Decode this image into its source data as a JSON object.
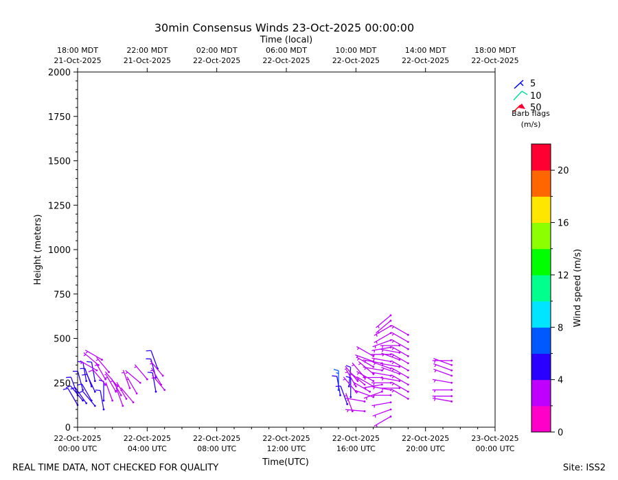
{
  "chart_data": {
    "type": "wind-barb",
    "title": "30min Consensus Winds 23-Oct-2025 00:00:00",
    "top_axis_label": "Time (local)",
    "xlabel": "Time(UTC)",
    "ylabel": "Height (meters)",
    "xlim_hours_utc": [
      0,
      24
    ],
    "ylim": [
      0,
      2000
    ],
    "x_ticks_utc": [
      {
        "hour": 0,
        "line1": "22-Oct-2025",
        "line2": "00:00 UTC"
      },
      {
        "hour": 4,
        "line1": "22-Oct-2025",
        "line2": "04:00 UTC"
      },
      {
        "hour": 8,
        "line1": "22-Oct-2025",
        "line2": "08:00 UTC"
      },
      {
        "hour": 12,
        "line1": "22-Oct-2025",
        "line2": "12:00 UTC"
      },
      {
        "hour": 16,
        "line1": "22-Oct-2025",
        "line2": "16:00 UTC"
      },
      {
        "hour": 20,
        "line1": "22-Oct-2025",
        "line2": "20:00 UTC"
      },
      {
        "hour": 24,
        "line1": "23-Oct-2025",
        "line2": "00:00 UTC"
      }
    ],
    "x_ticks_local": [
      {
        "hour": 0,
        "line1": "18:00 MDT",
        "line2": "21-Oct-2025"
      },
      {
        "hour": 4,
        "line1": "22:00 MDT",
        "line2": "21-Oct-2025"
      },
      {
        "hour": 8,
        "line1": "02:00 MDT",
        "line2": "22-Oct-2025"
      },
      {
        "hour": 12,
        "line1": "06:00 MDT",
        "line2": "22-Oct-2025"
      },
      {
        "hour": 16,
        "line1": "10:00 MDT",
        "line2": "22-Oct-2025"
      },
      {
        "hour": 20,
        "line1": "14:00 MDT",
        "line2": "22-Oct-2025"
      },
      {
        "hour": 24,
        "line1": "18:00 MDT",
        "line2": "22-Oct-2025"
      }
    ],
    "y_ticks": [
      0,
      250,
      500,
      750,
      1000,
      1250,
      1500,
      1750,
      2000
    ],
    "barb_legend": {
      "entries": [
        {
          "label": "5",
          "color": "#0000ff"
        },
        {
          "label": "10",
          "color": "#00e0a0"
        },
        {
          "label": "50",
          "color": "#ff0000"
        }
      ],
      "title_line1": "Barb flags",
      "title_line2": "(m/s)"
    },
    "colorbar": {
      "label": "Wind speed (m/s)",
      "range": [
        0,
        22
      ],
      "tick_values": [
        0,
        4,
        8,
        12,
        16,
        20
      ],
      "colors": [
        "#ff00c8",
        "#bf00ff",
        "#2a00ff",
        "#0059ff",
        "#00e5ff",
        "#00ff8c",
        "#00ff00",
        "#8cff00",
        "#ffe600",
        "#ff6600",
        "#ff0033"
      ]
    },
    "barbs": [
      {
        "t": 0.0,
        "h": 125,
        "ws": 4.5,
        "wd": 330
      },
      {
        "t": 0.0,
        "h": 180,
        "ws": 4.8,
        "wd": 340
      },
      {
        "t": 0.3,
        "h": 150,
        "ws": 4.6,
        "wd": 320
      },
      {
        "t": 0.3,
        "h": 210,
        "ws": 5.0,
        "wd": 345
      },
      {
        "t": 0.5,
        "h": 135,
        "ws": 4.5,
        "wd": 325
      },
      {
        "t": 0.5,
        "h": 260,
        "ws": 5.2,
        "wd": 350
      },
      {
        "t": 0.8,
        "h": 150,
        "ws": 4.8,
        "wd": 330
      },
      {
        "t": 0.8,
        "h": 230,
        "ws": 5.1,
        "wd": 340
      },
      {
        "t": 1.0,
        "h": 120,
        "ws": 4.4,
        "wd": 320
      },
      {
        "t": 1.0,
        "h": 200,
        "ws": 4.9,
        "wd": 335
      },
      {
        "t": 1.0,
        "h": 260,
        "ws": 5.3,
        "wd": 350
      },
      {
        "t": 1.1,
        "h": 320,
        "ws": 3.5,
        "wd": 300
      },
      {
        "t": 1.2,
        "h": 350,
        "ws": 3.6,
        "wd": 310
      },
      {
        "t": 1.4,
        "h": 380,
        "ws": 3.4,
        "wd": 300
      },
      {
        "t": 1.5,
        "h": 150,
        "ws": 4.6,
        "wd": 0
      },
      {
        "t": 1.5,
        "h": 100,
        "ws": 4.2,
        "wd": 350
      },
      {
        "t": 1.6,
        "h": 240,
        "ws": 3.8,
        "wd": 320
      },
      {
        "t": 1.6,
        "h": 270,
        "ws": 3.7,
        "wd": 330
      },
      {
        "t": 1.8,
        "h": 310,
        "ws": 3.6,
        "wd": 320
      },
      {
        "t": 2.0,
        "h": 150,
        "ws": 3.5,
        "wd": 340
      },
      {
        "t": 2.2,
        "h": 200,
        "ws": 3.6,
        "wd": 330
      },
      {
        "t": 2.3,
        "h": 230,
        "ws": 3.5,
        "wd": 320
      },
      {
        "t": 2.5,
        "h": 180,
        "ws": 3.4,
        "wd": 330
      },
      {
        "t": 2.6,
        "h": 120,
        "ws": 3.3,
        "wd": 340
      },
      {
        "t": 2.8,
        "h": 160,
        "ws": 3.4,
        "wd": 330
      },
      {
        "t": 3.0,
        "h": 220,
        "ws": 3.5,
        "wd": 340
      },
      {
        "t": 3.2,
        "h": 140,
        "ws": 3.3,
        "wd": 320
      },
      {
        "t": 3.4,
        "h": 190,
        "ws": 3.5,
        "wd": 330
      },
      {
        "t": 3.6,
        "h": 250,
        "ws": 3.6,
        "wd": 310
      },
      {
        "t": 4.0,
        "h": 270,
        "ws": 3.4,
        "wd": 320
      },
      {
        "t": 4.5,
        "h": 200,
        "ws": 4.5,
        "wd": 350
      },
      {
        "t": 4.5,
        "h": 280,
        "ws": 4.7,
        "wd": 345
      },
      {
        "t": 4.6,
        "h": 330,
        "ws": 4.4,
        "wd": 340
      },
      {
        "t": 4.8,
        "h": 240,
        "ws": 3.6,
        "wd": 330
      },
      {
        "t": 4.9,
        "h": 290,
        "ws": 3.7,
        "wd": 320
      },
      {
        "t": 5.0,
        "h": 210,
        "ws": 3.5,
        "wd": 320
      },
      {
        "t": 15.0,
        "h": 210,
        "ws": 6.5,
        "wd": 0
      },
      {
        "t": 15.1,
        "h": 180,
        "ws": 5.0,
        "wd": 350
      },
      {
        "t": 15.5,
        "h": 130,
        "ws": 4.5,
        "wd": 340
      },
      {
        "t": 15.6,
        "h": 230,
        "ws": 5.5,
        "wd": 5
      },
      {
        "t": 15.7,
        "h": 170,
        "ws": 4.8,
        "wd": 0
      },
      {
        "t": 15.8,
        "h": 90,
        "ws": 3.5,
        "wd": 340
      },
      {
        "t": 16.0,
        "h": 200,
        "ws": 2.5,
        "wd": 320
      },
      {
        "t": 16.0,
        "h": 230,
        "ws": 2.8,
        "wd": 330
      },
      {
        "t": 16.1,
        "h": 260,
        "ws": 3.0,
        "wd": 320
      },
      {
        "t": 16.5,
        "h": 240,
        "ws": 2.6,
        "wd": 310
      },
      {
        "t": 16.5,
        "h": 280,
        "ws": 2.7,
        "wd": 320
      },
      {
        "t": 16.5,
        "h": 90,
        "ws": 2.0,
        "wd": 275
      },
      {
        "t": 16.5,
        "h": 145,
        "ws": 2.1,
        "wd": 280
      },
      {
        "t": 16.8,
        "h": 200,
        "ws": 2.4,
        "wd": 300
      },
      {
        "t": 17.0,
        "h": 170,
        "ws": 2.3,
        "wd": 290
      },
      {
        "t": 17.0,
        "h": 230,
        "ws": 2.6,
        "wd": 300
      },
      {
        "t": 17.0,
        "h": 260,
        "ws": 2.8,
        "wd": 300
      },
      {
        "t": 17.0,
        "h": 300,
        "ws": 2.8,
        "wd": 310
      },
      {
        "t": 17.0,
        "h": 340,
        "ws": 2.9,
        "wd": 300
      },
      {
        "t": 17.0,
        "h": 370,
        "ws": 3.0,
        "wd": 290
      },
      {
        "t": 17.0,
        "h": 400,
        "ws": 2.9,
        "wd": 300
      },
      {
        "t": 17.5,
        "h": 200,
        "ws": 2.5,
        "wd": 250
      },
      {
        "t": 17.5,
        "h": 240,
        "ws": 2.6,
        "wd": 260
      },
      {
        "t": 17.5,
        "h": 280,
        "ws": 2.7,
        "wd": 270
      },
      {
        "t": 17.5,
        "h": 320,
        "ws": 2.8,
        "wd": 280
      },
      {
        "t": 17.5,
        "h": 360,
        "ws": 2.9,
        "wd": 280
      },
      {
        "t": 18.0,
        "h": 60,
        "ws": 2.0,
        "wd": 240
      },
      {
        "t": 18.0,
        "h": 100,
        "ws": 2.2,
        "wd": 250
      },
      {
        "t": 18.0,
        "h": 140,
        "ws": 2.3,
        "wd": 260
      },
      {
        "t": 18.0,
        "h": 180,
        "ws": 2.4,
        "wd": 270
      },
      {
        "t": 18.0,
        "h": 210,
        "ws": 2.5,
        "wd": 280
      },
      {
        "t": 18.0,
        "h": 250,
        "ws": 2.6,
        "wd": 270
      },
      {
        "t": 18.0,
        "h": 290,
        "ws": 2.7,
        "wd": 280
      },
      {
        "t": 18.0,
        "h": 330,
        "ws": 2.8,
        "wd": 290
      },
      {
        "t": 18.0,
        "h": 370,
        "ws": 2.8,
        "wd": 280
      },
      {
        "t": 18.0,
        "h": 410,
        "ws": 2.9,
        "wd": 270
      },
      {
        "t": 18.0,
        "h": 450,
        "ws": 3.0,
        "wd": 260
      },
      {
        "t": 18.0,
        "h": 490,
        "ws": 3.1,
        "wd": 250
      },
      {
        "t": 18.0,
        "h": 530,
        "ws": 3.2,
        "wd": 240
      },
      {
        "t": 18.0,
        "h": 570,
        "ws": 3.1,
        "wd": 240
      },
      {
        "t": 18.0,
        "h": 600,
        "ws": 3.0,
        "wd": 230
      },
      {
        "t": 18.0,
        "h": 630,
        "ws": 3.0,
        "wd": 230
      },
      {
        "t": 18.5,
        "h": 220,
        "ws": 2.6,
        "wd": 270
      },
      {
        "t": 18.5,
        "h": 260,
        "ws": 2.7,
        "wd": 280
      },
      {
        "t": 18.5,
        "h": 300,
        "ws": 2.8,
        "wd": 290
      },
      {
        "t": 18.5,
        "h": 340,
        "ws": 2.9,
        "wd": 280
      },
      {
        "t": 18.5,
        "h": 380,
        "ws": 2.9,
        "wd": 290
      },
      {
        "t": 18.5,
        "h": 420,
        "ws": 3.0,
        "wd": 280
      },
      {
        "t": 18.5,
        "h": 460,
        "ws": 3.0,
        "wd": 270
      },
      {
        "t": 19.0,
        "h": 160,
        "ws": 2.4,
        "wd": 300
      },
      {
        "t": 19.0,
        "h": 200,
        "ws": 2.5,
        "wd": 300
      },
      {
        "t": 19.0,
        "h": 240,
        "ws": 2.6,
        "wd": 300
      },
      {
        "t": 19.0,
        "h": 280,
        "ws": 2.7,
        "wd": 300
      },
      {
        "t": 19.0,
        "h": 320,
        "ws": 2.8,
        "wd": 300
      },
      {
        "t": 19.0,
        "h": 360,
        "ws": 2.9,
        "wd": 300
      },
      {
        "t": 19.0,
        "h": 400,
        "ws": 2.9,
        "wd": 300
      },
      {
        "t": 19.0,
        "h": 440,
        "ws": 3.0,
        "wd": 300
      },
      {
        "t": 19.0,
        "h": 480,
        "ws": 3.0,
        "wd": 300
      },
      {
        "t": 19.0,
        "h": 520,
        "ws": 3.0,
        "wd": 300
      },
      {
        "t": 21.5,
        "h": 145,
        "ws": 2.2,
        "wd": 280
      },
      {
        "t": 21.5,
        "h": 175,
        "ws": 2.3,
        "wd": 270
      },
      {
        "t": 21.5,
        "h": 210,
        "ws": 2.4,
        "wd": 270
      },
      {
        "t": 21.5,
        "h": 250,
        "ws": 2.5,
        "wd": 280
      },
      {
        "t": 21.5,
        "h": 290,
        "ws": 2.6,
        "wd": 290
      },
      {
        "t": 21.5,
        "h": 320,
        "ws": 2.6,
        "wd": 290
      },
      {
        "t": 21.5,
        "h": 350,
        "ws": 2.7,
        "wd": 290
      },
      {
        "t": 21.5,
        "h": 375,
        "ws": 2.7,
        "wd": 270
      }
    ]
  },
  "footer": {
    "left": "REAL TIME DATA, NOT CHECKED FOR QUALITY",
    "right": "Site: ISS2"
  }
}
